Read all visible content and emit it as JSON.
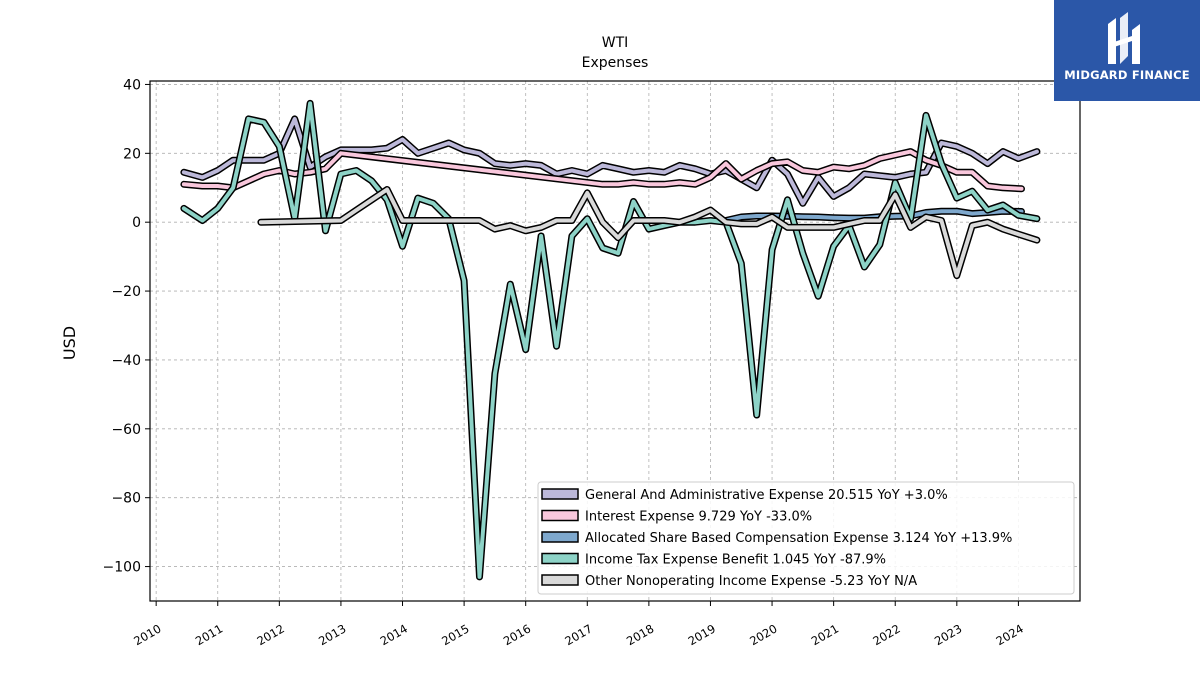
{
  "brand": {
    "name": "MIDGARD FINANCE",
    "icon": "midgard-logo-icon",
    "color": "#2b57a8"
  },
  "chart_data": {
    "type": "line",
    "title": "WTI",
    "subtitle": "Expenses",
    "xlabel": "",
    "ylabel": "USD",
    "xlim": [
      2009.9,
      2025.0
    ],
    "ylim": [
      -110,
      41
    ],
    "yticks": [
      40,
      20,
      0,
      -20,
      -40,
      -60,
      -80,
      -100
    ],
    "ytick_labels": [
      "40",
      "20",
      "0",
      "−20",
      "−40",
      "−60",
      "−80",
      "−100"
    ],
    "xticks": [
      2010,
      2011,
      2012,
      2013,
      2014,
      2015,
      2016,
      2017,
      2018,
      2019,
      2020,
      2021,
      2022,
      2023,
      2024
    ],
    "xtick_labels": [
      "2010",
      "2011",
      "2012",
      "2013",
      "2014",
      "2015",
      "2016",
      "2017",
      "2018",
      "2019",
      "2020",
      "2021",
      "2022",
      "2023",
      "2024"
    ],
    "grid": true,
    "legend_position": "bottom-right",
    "series": [
      {
        "name": "General And Administrative Expense",
        "legend": "General And Administrative Expense  20.515 YoY +3.0%",
        "color": "#bcb8d9",
        "x": [
          2010.45,
          2010.75,
          2011.0,
          2011.25,
          2011.5,
          2011.75,
          2012.0,
          2012.25,
          2012.5,
          2012.75,
          2013.0,
          2013.25,
          2013.5,
          2013.75,
          2014.0,
          2014.25,
          2014.5,
          2014.75,
          2015.0,
          2015.25,
          2015.5,
          2015.75,
          2016.0,
          2016.25,
          2016.5,
          2016.75,
          2017.0,
          2017.25,
          2017.5,
          2017.75,
          2018.0,
          2018.25,
          2018.5,
          2018.75,
          2019.0,
          2019.25,
          2019.5,
          2019.75,
          2020.0,
          2020.25,
          2020.5,
          2020.75,
          2021.0,
          2021.25,
          2021.5,
          2021.75,
          2022.0,
          2022.25,
          2022.5,
          2022.75,
          2023.0,
          2023.25,
          2023.5,
          2023.75,
          2024.0,
          2024.3
        ],
        "y": [
          14.5,
          13.0,
          15.0,
          18.0,
          18.0,
          18.0,
          20.0,
          30.0,
          16.0,
          19.0,
          21.0,
          21.0,
          21.0,
          21.5,
          24.0,
          20.0,
          21.5,
          23.0,
          21.0,
          20.0,
          17.0,
          16.5,
          17.0,
          16.5,
          14.0,
          15.0,
          14.0,
          16.5,
          15.5,
          14.5,
          15.0,
          14.5,
          16.5,
          15.5,
          14.0,
          15.0,
          12.5,
          10.0,
          18.0,
          14.0,
          5.5,
          13.0,
          7.5,
          10.0,
          14.0,
          13.5,
          13.0,
          14.0,
          14.5,
          23.0,
          22.0,
          20.0,
          17.0,
          20.5,
          18.5,
          20.5
        ]
      },
      {
        "name": "Interest Expense",
        "legend": "Interest Expense  9.729 YoY -33.0%",
        "color": "#f9c7dc",
        "x": [
          2010.45,
          2010.75,
          2011.0,
          2011.25,
          2011.5,
          2011.75,
          2012.0,
          2012.25,
          2012.5,
          2012.75,
          2013.0,
          2017.25,
          2017.5,
          2017.75,
          2018.0,
          2018.25,
          2018.5,
          2018.75,
          2019.0,
          2019.25,
          2019.5,
          2019.75,
          2020.0,
          2020.25,
          2020.5,
          2020.75,
          2021.0,
          2021.25,
          2021.5,
          2021.75,
          2022.0,
          2022.25,
          2022.5,
          2022.75,
          2023.0,
          2023.25,
          2023.5,
          2023.75,
          2024.05
        ],
        "y": [
          11.0,
          10.5,
          10.5,
          10.0,
          12.0,
          14.0,
          15.0,
          14.0,
          14.5,
          15.5,
          20.0,
          11.0,
          11.0,
          11.5,
          11.0,
          11.0,
          11.5,
          11.0,
          13.0,
          17.0,
          12.5,
          15.0,
          17.0,
          17.5,
          15.0,
          14.5,
          16.0,
          15.5,
          16.5,
          18.5,
          19.5,
          20.5,
          18.0,
          16.5,
          14.5,
          14.5,
          10.5,
          10.0,
          9.7
        ]
      },
      {
        "name": "Allocated Share Based Compensation Expense",
        "legend": "Allocated Share Based Compensation Expense  3.124 YoY +13.9%",
        "color": "#7ea8cd",
        "x": [
          2019.25,
          2019.5,
          2019.75,
          2020.0,
          2020.25,
          2020.5,
          2020.75,
          2021.0,
          2021.25,
          2021.5,
          2021.75,
          2022.0,
          2022.25,
          2022.5,
          2022.75,
          2023.0,
          2023.25,
          2023.5,
          2023.75,
          2024.05
        ],
        "y": [
          0.5,
          1.5,
          1.8,
          1.8,
          1.7,
          1.6,
          1.5,
          1.3,
          1.2,
          1.2,
          1.6,
          1.7,
          1.8,
          2.8,
          3.2,
          3.2,
          2.5,
          2.8,
          3.2,
          3.1
        ]
      },
      {
        "name": "Income Tax Expense Benefit",
        "legend": "Income Tax Expense Benefit  1.045 YoY -87.9%",
        "color": "#8dd3c7",
        "x": [
          2010.45,
          2010.75,
          2011.0,
          2011.25,
          2011.5,
          2011.75,
          2012.0,
          2012.25,
          2012.5,
          2012.75,
          2013.0,
          2013.25,
          2013.5,
          2013.75,
          2014.0,
          2014.25,
          2014.5,
          2014.75,
          2015.0,
          2015.25,
          2015.5,
          2015.75,
          2016.0,
          2016.25,
          2016.5,
          2016.75,
          2017.0,
          2017.25,
          2017.5,
          2017.75,
          2018.0,
          2018.25,
          2018.5,
          2018.75,
          2019.0,
          2019.25,
          2019.5,
          2019.75,
          2020.0,
          2020.25,
          2020.5,
          2020.75,
          2021.0,
          2021.25,
          2021.5,
          2021.75,
          2022.0,
          2022.25,
          2022.5,
          2022.75,
          2023.0,
          2023.25,
          2023.5,
          2023.75,
          2024.0,
          2024.3
        ],
        "y": [
          4.0,
          0.5,
          4.0,
          10.0,
          30.0,
          29.0,
          22.0,
          1.0,
          34.5,
          -2.5,
          14.0,
          15.0,
          12.0,
          6.5,
          -7.0,
          7.0,
          5.5,
          1.0,
          -17.0,
          -103.0,
          -44.0,
          -18.0,
          -37.0,
          -4.0,
          -36.0,
          -4.0,
          1.0,
          -7.5,
          -9.0,
          6.0,
          -2.0,
          -1.0,
          0.0,
          0.0,
          0.5,
          0.0,
          -12.0,
          -56.0,
          -8.0,
          6.5,
          -9.0,
          -21.5,
          -7.0,
          -1.0,
          -13.0,
          -6.5,
          11.5,
          1.0,
          31.0,
          17.0,
          7.0,
          9.0,
          3.5,
          5.0,
          2.0,
          1.0
        ]
      },
      {
        "name": "Other Nonoperating Income Expense",
        "legend": "Other Nonoperating Income Expense  -5.23 YoY N/A",
        "color": "#d9d9d9",
        "x": [
          2011.7,
          2013.0,
          2013.25,
          2013.5,
          2013.75,
          2014.0,
          2014.25,
          2014.5,
          2014.75,
          2015.0,
          2015.25,
          2015.5,
          2015.75,
          2016.0,
          2016.25,
          2016.5,
          2016.75,
          2017.0,
          2017.25,
          2017.5,
          2017.75,
          2018.0,
          2018.25,
          2018.5,
          2018.75,
          2019.0,
          2019.25,
          2019.5,
          2019.75,
          2020.0,
          2020.25,
          2020.5,
          2020.75,
          2021.0,
          2021.25,
          2021.5,
          2021.75,
          2022.0,
          2022.25,
          2022.5,
          2022.75,
          2023.0,
          2023.25,
          2023.5,
          2023.75,
          2024.0,
          2024.3
        ],
        "y": [
          0.0,
          0.5,
          3.5,
          6.5,
          9.5,
          0.5,
          0.5,
          0.5,
          0.5,
          0.5,
          0.5,
          -2.0,
          -1.0,
          -2.5,
          -1.5,
          0.5,
          0.5,
          8.5,
          0.0,
          -4.5,
          0.5,
          0.5,
          0.5,
          0.0,
          1.5,
          3.5,
          0.0,
          -0.5,
          -0.5,
          1.5,
          -1.5,
          -1.5,
          -1.5,
          -1.5,
          -0.5,
          0.5,
          0.5,
          8.0,
          -1.5,
          1.5,
          0.5,
          -15.5,
          -1.0,
          0.0,
          -2.0,
          -3.5,
          -5.2
        ]
      }
    ]
  }
}
